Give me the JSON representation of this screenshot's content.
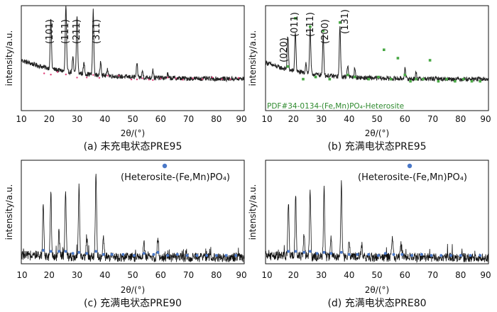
{
  "charts": [
    {
      "caption": "(a) 未充电状态PRE95",
      "xlabel": "2θ/(°)",
      "ylabel": "intensity/a.u.",
      "xticks": [
        "10",
        "20",
        "30",
        "40",
        "50",
        "60",
        "70",
        "80",
        "90"
      ],
      "peak_labels": [
        "(101)",
        "(111)",
        "(211)",
        "(311)"
      ],
      "legend": "",
      "ref_note": ""
    },
    {
      "caption": "(b) 充满电状态PRE95",
      "xlabel": "2θ/(°)",
      "ylabel": "intensity/a.u.",
      "xticks": [
        "10",
        "20",
        "30",
        "40",
        "50",
        "60",
        "70",
        "80",
        "90"
      ],
      "peak_labels": [
        "(020)",
        "(011)",
        "(111)",
        "(200)",
        "(131)"
      ],
      "legend": "",
      "ref_note": "PDF#34-0134-(Fe,Mn)PO₄-Heterosite"
    },
    {
      "caption": "(c) 充满电状态PRE90",
      "xlabel": "2θ/(°)",
      "ylabel": "intensity/a.u.",
      "xticks": [
        "10",
        "20",
        "30",
        "40",
        "50",
        "60",
        "70",
        "80",
        "90"
      ],
      "peak_labels": [],
      "legend": "(Heterosite-(Fe,Mn)PO₄)",
      "ref_note": ""
    },
    {
      "caption": "(d) 充满电状态PRE80",
      "xlabel": "2θ/(°)",
      "ylabel": "intensity/a.u.",
      "xticks": [
        "10",
        "20",
        "30",
        "40",
        "50",
        "60",
        "70",
        "80",
        "90"
      ],
      "peak_labels": [],
      "legend": "(Heterosite-(Fe,Mn)PO₄)",
      "ref_note": ""
    }
  ],
  "chart_data": [
    {
      "type": "line",
      "xlim": [
        10,
        90
      ],
      "ylim": [
        0,
        100
      ],
      "colors": {
        "pattern": "#222222",
        "markers": "#e0407a"
      },
      "baseline": 30,
      "peaks": [
        {
          "x": 20.6,
          "y": 78
        },
        {
          "x": 26.0,
          "y": 93
        },
        {
          "x": 30.0,
          "y": 85
        },
        {
          "x": 35.8,
          "y": 91
        },
        {
          "x": 28.5,
          "y": 44
        },
        {
          "x": 32.5,
          "y": 40
        },
        {
          "x": 38.5,
          "y": 44
        },
        {
          "x": 41.0,
          "y": 36
        },
        {
          "x": 51.5,
          "y": 42
        },
        {
          "x": 53.5,
          "y": 36
        },
        {
          "x": 57.2,
          "y": 38
        },
        {
          "x": 62.5,
          "y": 34
        }
      ],
      "marker_x": [
        18.2,
        20.6,
        23.0,
        26.0,
        30.0,
        33.5,
        35.8,
        38.0,
        41.0,
        45.0,
        49.5,
        51.5,
        53.5,
        55.8,
        57.2,
        60.0,
        62.5,
        65.5,
        68.0,
        71.5,
        75.0,
        78.5,
        82.0,
        85.0,
        88.0
      ],
      "peak_label_x": [
        20.6,
        26.0,
        30.0,
        35.8
      ]
    },
    {
      "type": "line",
      "xlim": [
        10,
        90
      ],
      "ylim": [
        0,
        100
      ],
      "colors": {
        "pattern": "#222222",
        "markers": "#49a845"
      },
      "baseline": 30,
      "peaks": [
        {
          "x": 18.0,
          "y": 62
        },
        {
          "x": 20.7,
          "y": 68
        },
        {
          "x": 26.0,
          "y": 73
        },
        {
          "x": 30.7,
          "y": 70
        },
        {
          "x": 36.7,
          "y": 78
        },
        {
          "x": 24.5,
          "y": 40
        },
        {
          "x": 39.5,
          "y": 42
        },
        {
          "x": 42.0,
          "y": 38
        },
        {
          "x": 60.0,
          "y": 40
        },
        {
          "x": 64.0,
          "y": 36
        }
      ],
      "marker_x": [
        18.0,
        20.7,
        23.5,
        26.0,
        28.0,
        30.7,
        33.0,
        36.7,
        39.5,
        42.0,
        47.0,
        50.5,
        52.5,
        55.0,
        57.5,
        60.0,
        62.0,
        64.0,
        66.5,
        69.0,
        72.0,
        75.0,
        78.0,
        81.0,
        84.0,
        87.0
      ],
      "marker_y": [
        42,
        88,
        30,
        80,
        32,
        76,
        30,
        84,
        34,
        32,
        30,
        32,
        58,
        30,
        50,
        34,
        28,
        30,
        30,
        48,
        28,
        30,
        28,
        30,
        28,
        28
      ],
      "peak_label_x": [
        18.0,
        20.7,
        26.0,
        30.7,
        36.7
      ]
    },
    {
      "type": "line",
      "xlim": [
        10,
        90
      ],
      "ylim": [
        0,
        100
      ],
      "colors": {
        "pattern": "#111111",
        "markers": "#4a78c8"
      },
      "baseline": 6,
      "peaks": [
        {
          "x": 17.9,
          "y": 58
        },
        {
          "x": 20.6,
          "y": 68
        },
        {
          "x": 25.9,
          "y": 70
        },
        {
          "x": 30.7,
          "y": 74
        },
        {
          "x": 36.8,
          "y": 88
        },
        {
          "x": 23.5,
          "y": 30
        },
        {
          "x": 33.5,
          "y": 26
        },
        {
          "x": 39.5,
          "y": 24
        },
        {
          "x": 59.0,
          "y": 24
        },
        {
          "x": 54.0,
          "y": 20
        }
      ],
      "marker_x": [
        17.9,
        20.6,
        23.5,
        25.9,
        28.5,
        30.7,
        33.5,
        36.8,
        39.5,
        42.5,
        46.5,
        50.5,
        54.0,
        57.5,
        59.0,
        62.5,
        66.0,
        69.5,
        73.0,
        76.5,
        80.0,
        83.5,
        87.0
      ],
      "marker_y": [
        13,
        12,
        12,
        12,
        10,
        11,
        10,
        12,
        9,
        9,
        9,
        8,
        10,
        9,
        11,
        8,
        9,
        8,
        8,
        8,
        8,
        8,
        8
      ]
    },
    {
      "type": "line",
      "xlim": [
        10,
        90
      ],
      "ylim": [
        0,
        100
      ],
      "colors": {
        "pattern": "#111111",
        "markers": "#4a78c8"
      },
      "baseline": 6,
      "peaks": [
        {
          "x": 18.2,
          "y": 60
        },
        {
          "x": 20.8,
          "y": 66
        },
        {
          "x": 26.0,
          "y": 70
        },
        {
          "x": 31.0,
          "y": 72
        },
        {
          "x": 37.2,
          "y": 76
        },
        {
          "x": 23.8,
          "y": 28
        },
        {
          "x": 33.5,
          "y": 26
        },
        {
          "x": 40.0,
          "y": 24
        },
        {
          "x": 44.5,
          "y": 18
        },
        {
          "x": 55.5,
          "y": 24
        },
        {
          "x": 58.5,
          "y": 20
        }
      ],
      "marker_x": [
        18.2,
        20.8,
        23.8,
        26.0,
        28.5,
        31.0,
        33.5,
        37.2,
        40.0,
        43.0,
        47.0,
        50.5,
        53.0,
        56.0,
        59.0,
        62.5,
        66.0,
        69.5,
        73.0,
        76.5,
        80.0,
        83.5,
        87.0
      ],
      "marker_y": [
        12,
        12,
        11,
        12,
        10,
        11,
        10,
        11,
        9,
        9,
        9,
        8,
        10,
        9,
        9,
        8,
        9,
        8,
        8,
        8,
        8,
        8,
        8
      ]
    }
  ]
}
